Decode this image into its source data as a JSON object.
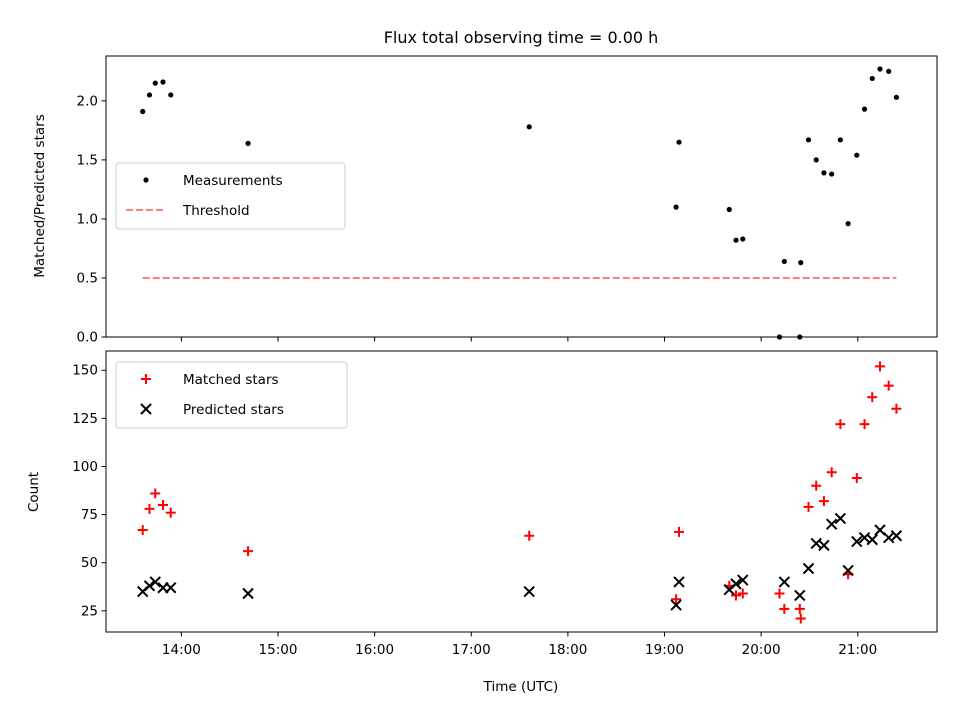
{
  "title": "Flux total observing time = 0.00 h",
  "chart_data": [
    {
      "type": "scatter",
      "ylabel": "Matched/Predicted stars",
      "ylim": [
        0,
        2.38
      ],
      "xlim_hours": [
        13.22,
        21.82
      ],
      "yticks": [
        {
          "v": 0.0,
          "label": "0.0"
        },
        {
          "v": 0.5,
          "label": "0.5"
        },
        {
          "v": 1.0,
          "label": "1.0"
        },
        {
          "v": 1.5,
          "label": "1.5"
        },
        {
          "v": 2.0,
          "label": "2.0"
        }
      ],
      "grid": false,
      "legend": {
        "position": "center-left",
        "entries": [
          "Measurements",
          "Threshold"
        ]
      },
      "series": [
        {
          "name": "Measurements",
          "marker": "dot",
          "color": "#000000",
          "x": [
            13.6,
            13.67,
            13.73,
            13.81,
            13.89,
            14.69,
            17.6,
            19.12,
            19.15,
            19.67,
            19.74,
            19.81,
            20.19,
            20.24,
            20.4,
            20.41,
            20.49,
            20.57,
            20.65,
            20.73,
            20.82,
            20.9,
            20.99,
            21.07,
            21.15,
            21.23,
            21.32,
            21.4
          ],
          "y": [
            1.91,
            2.05,
            2.15,
            2.16,
            2.05,
            1.64,
            1.78,
            1.1,
            1.65,
            1.08,
            0.82,
            0.83,
            0.0,
            0.64,
            0.0,
            0.63,
            1.67,
            1.5,
            1.39,
            1.38,
            1.67,
            0.96,
            1.54,
            1.93,
            2.19,
            2.27,
            2.25,
            2.03
          ]
        },
        {
          "name": "Threshold",
          "style": "dashed",
          "color": "#ff7f7f",
          "x": [
            13.6,
            21.4
          ],
          "y": [
            0.5,
            0.5
          ]
        }
      ]
    },
    {
      "type": "scatter",
      "ylabel": "Count",
      "xlabel": "Time (UTC)",
      "ylim": [
        14,
        160
      ],
      "xlim_hours": [
        13.22,
        21.82
      ],
      "yticks": [
        {
          "v": 25,
          "label": "25"
        },
        {
          "v": 50,
          "label": "50"
        },
        {
          "v": 75,
          "label": "75"
        },
        {
          "v": 100,
          "label": "100"
        },
        {
          "v": 125,
          "label": "125"
        },
        {
          "v": 150,
          "label": "150"
        }
      ],
      "xticks": [
        {
          "v": 14,
          "label": "14:00"
        },
        {
          "v": 15,
          "label": "15:00"
        },
        {
          "v": 16,
          "label": "16:00"
        },
        {
          "v": 17,
          "label": "17:00"
        },
        {
          "v": 18,
          "label": "18:00"
        },
        {
          "v": 19,
          "label": "19:00"
        },
        {
          "v": 20,
          "label": "20:00"
        },
        {
          "v": 21,
          "label": "21:00"
        }
      ],
      "grid": false,
      "legend": {
        "position": "top-left",
        "entries": [
          "Matched stars",
          "Predicted stars"
        ]
      },
      "series": [
        {
          "name": "Matched stars",
          "marker": "plus",
          "color": "#ff0000",
          "x": [
            13.6,
            13.67,
            13.73,
            13.81,
            13.89,
            14.69,
            17.6,
            19.12,
            19.15,
            19.67,
            19.74,
            19.81,
            20.19,
            20.24,
            20.4,
            20.41,
            20.49,
            20.57,
            20.65,
            20.73,
            20.82,
            20.9,
            20.99,
            21.07,
            21.15,
            21.23,
            21.32,
            21.4
          ],
          "y": [
            67,
            78,
            86,
            80,
            76,
            56,
            64,
            31,
            66,
            38,
            33,
            34,
            34,
            26,
            26,
            21,
            79,
            90,
            82,
            97,
            122,
            44,
            94,
            122,
            136,
            152,
            142,
            130
          ]
        },
        {
          "name": "Predicted stars",
          "marker": "x",
          "color": "#000000",
          "x": [
            13.6,
            13.67,
            13.73,
            13.81,
            13.89,
            14.69,
            17.6,
            19.12,
            19.15,
            19.67,
            19.74,
            19.81,
            20.24,
            20.4,
            20.49,
            20.57,
            20.65,
            20.73,
            20.82,
            20.9,
            20.99,
            21.07,
            21.15,
            21.23,
            21.32,
            21.4
          ],
          "y": [
            35,
            38,
            40,
            37,
            37,
            34,
            35,
            28,
            40,
            36,
            39,
            41,
            40,
            33,
            47,
            60,
            59,
            70,
            73,
            46,
            61,
            63,
            62,
            67,
            63,
            64
          ]
        }
      ]
    }
  ]
}
